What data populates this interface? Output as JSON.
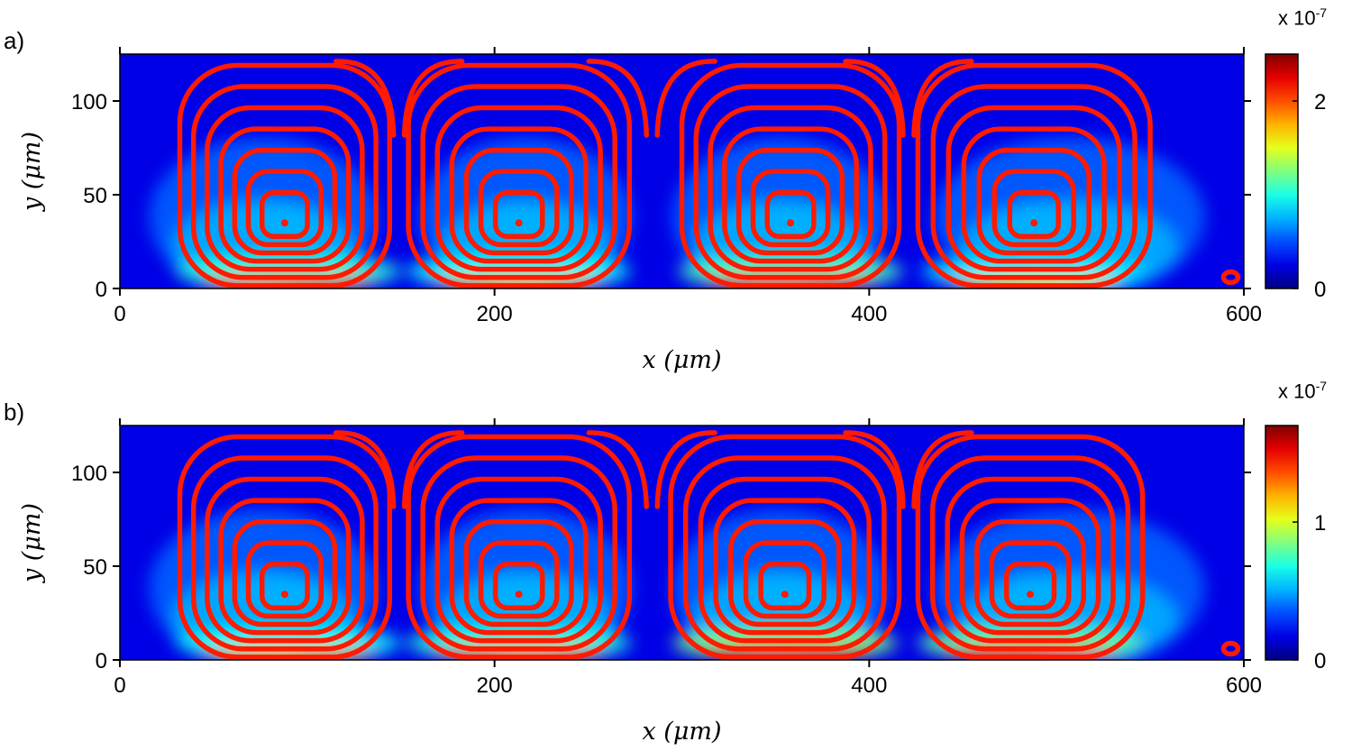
{
  "panels": [
    {
      "label": "a)",
      "chart_data": {
        "type": "heatmap",
        "subtype": "field magnitude with streamlines",
        "title": "",
        "xlabel": "x (μm)",
        "ylabel": "y (μm)",
        "xlim": [
          0,
          600
        ],
        "ylim": [
          0,
          125
        ],
        "xticks": [
          0,
          200,
          400,
          600
        ],
        "yticks": [
          0,
          50,
          100
        ],
        "colorbar": {
          "exponent_text": "x 10",
          "exponent": "-7",
          "ticks": [
            0,
            2
          ],
          "max": 2.5,
          "colormap": "jet"
        },
        "vortices": [
          {
            "center": [
              88,
              35
            ],
            "x_range": [
              5,
              148
            ]
          },
          {
            "center": [
              213,
              35
            ],
            "x_range": [
              150,
              283
            ]
          },
          {
            "center": [
              358,
              35
            ],
            "x_range": [
              285,
              420
            ]
          },
          {
            "center": [
              488,
              35
            ],
            "x_range": [
              422,
              592
            ]
          }
        ],
        "bottom_hotspots": [
          {
            "x": 90,
            "intensity": 0.75
          },
          {
            "x": 213,
            "intensity": 0.7
          },
          {
            "x": 358,
            "intensity": 0.8
          },
          {
            "x": 488,
            "intensity": 0.65
          }
        ],
        "streamline_color": "#ff1a00"
      }
    },
    {
      "label": "b)",
      "chart_data": {
        "type": "heatmap",
        "subtype": "field magnitude with streamlines",
        "title": "",
        "xlabel": "x (μm)",
        "ylabel": "y (μm)",
        "xlim": [
          0,
          600
        ],
        "ylim": [
          0,
          125
        ],
        "xticks": [
          0,
          200,
          400,
          600
        ],
        "yticks": [
          0,
          50,
          100
        ],
        "colorbar": {
          "exponent_text": "x 10",
          "exponent": "-7",
          "ticks": [
            0,
            1
          ],
          "max": 1.7,
          "colormap": "jet"
        },
        "vortices": [
          {
            "center": [
              88,
              35
            ],
            "x_range": [
              5,
              148
            ]
          },
          {
            "center": [
              213,
              35
            ],
            "x_range": [
              150,
              283
            ]
          },
          {
            "center": [
              355,
              35
            ],
            "x_range": [
              285,
              420
            ]
          },
          {
            "center": [
              486,
              35
            ],
            "x_range": [
              422,
              592
            ]
          }
        ],
        "bottom_hotspots": [
          {
            "x": 90,
            "intensity": 0.7
          },
          {
            "x": 213,
            "intensity": 0.75
          },
          {
            "x": 355,
            "intensity": 0.9
          },
          {
            "x": 486,
            "intensity": 0.85
          }
        ],
        "streamline_color": "#ff1a00"
      }
    }
  ]
}
